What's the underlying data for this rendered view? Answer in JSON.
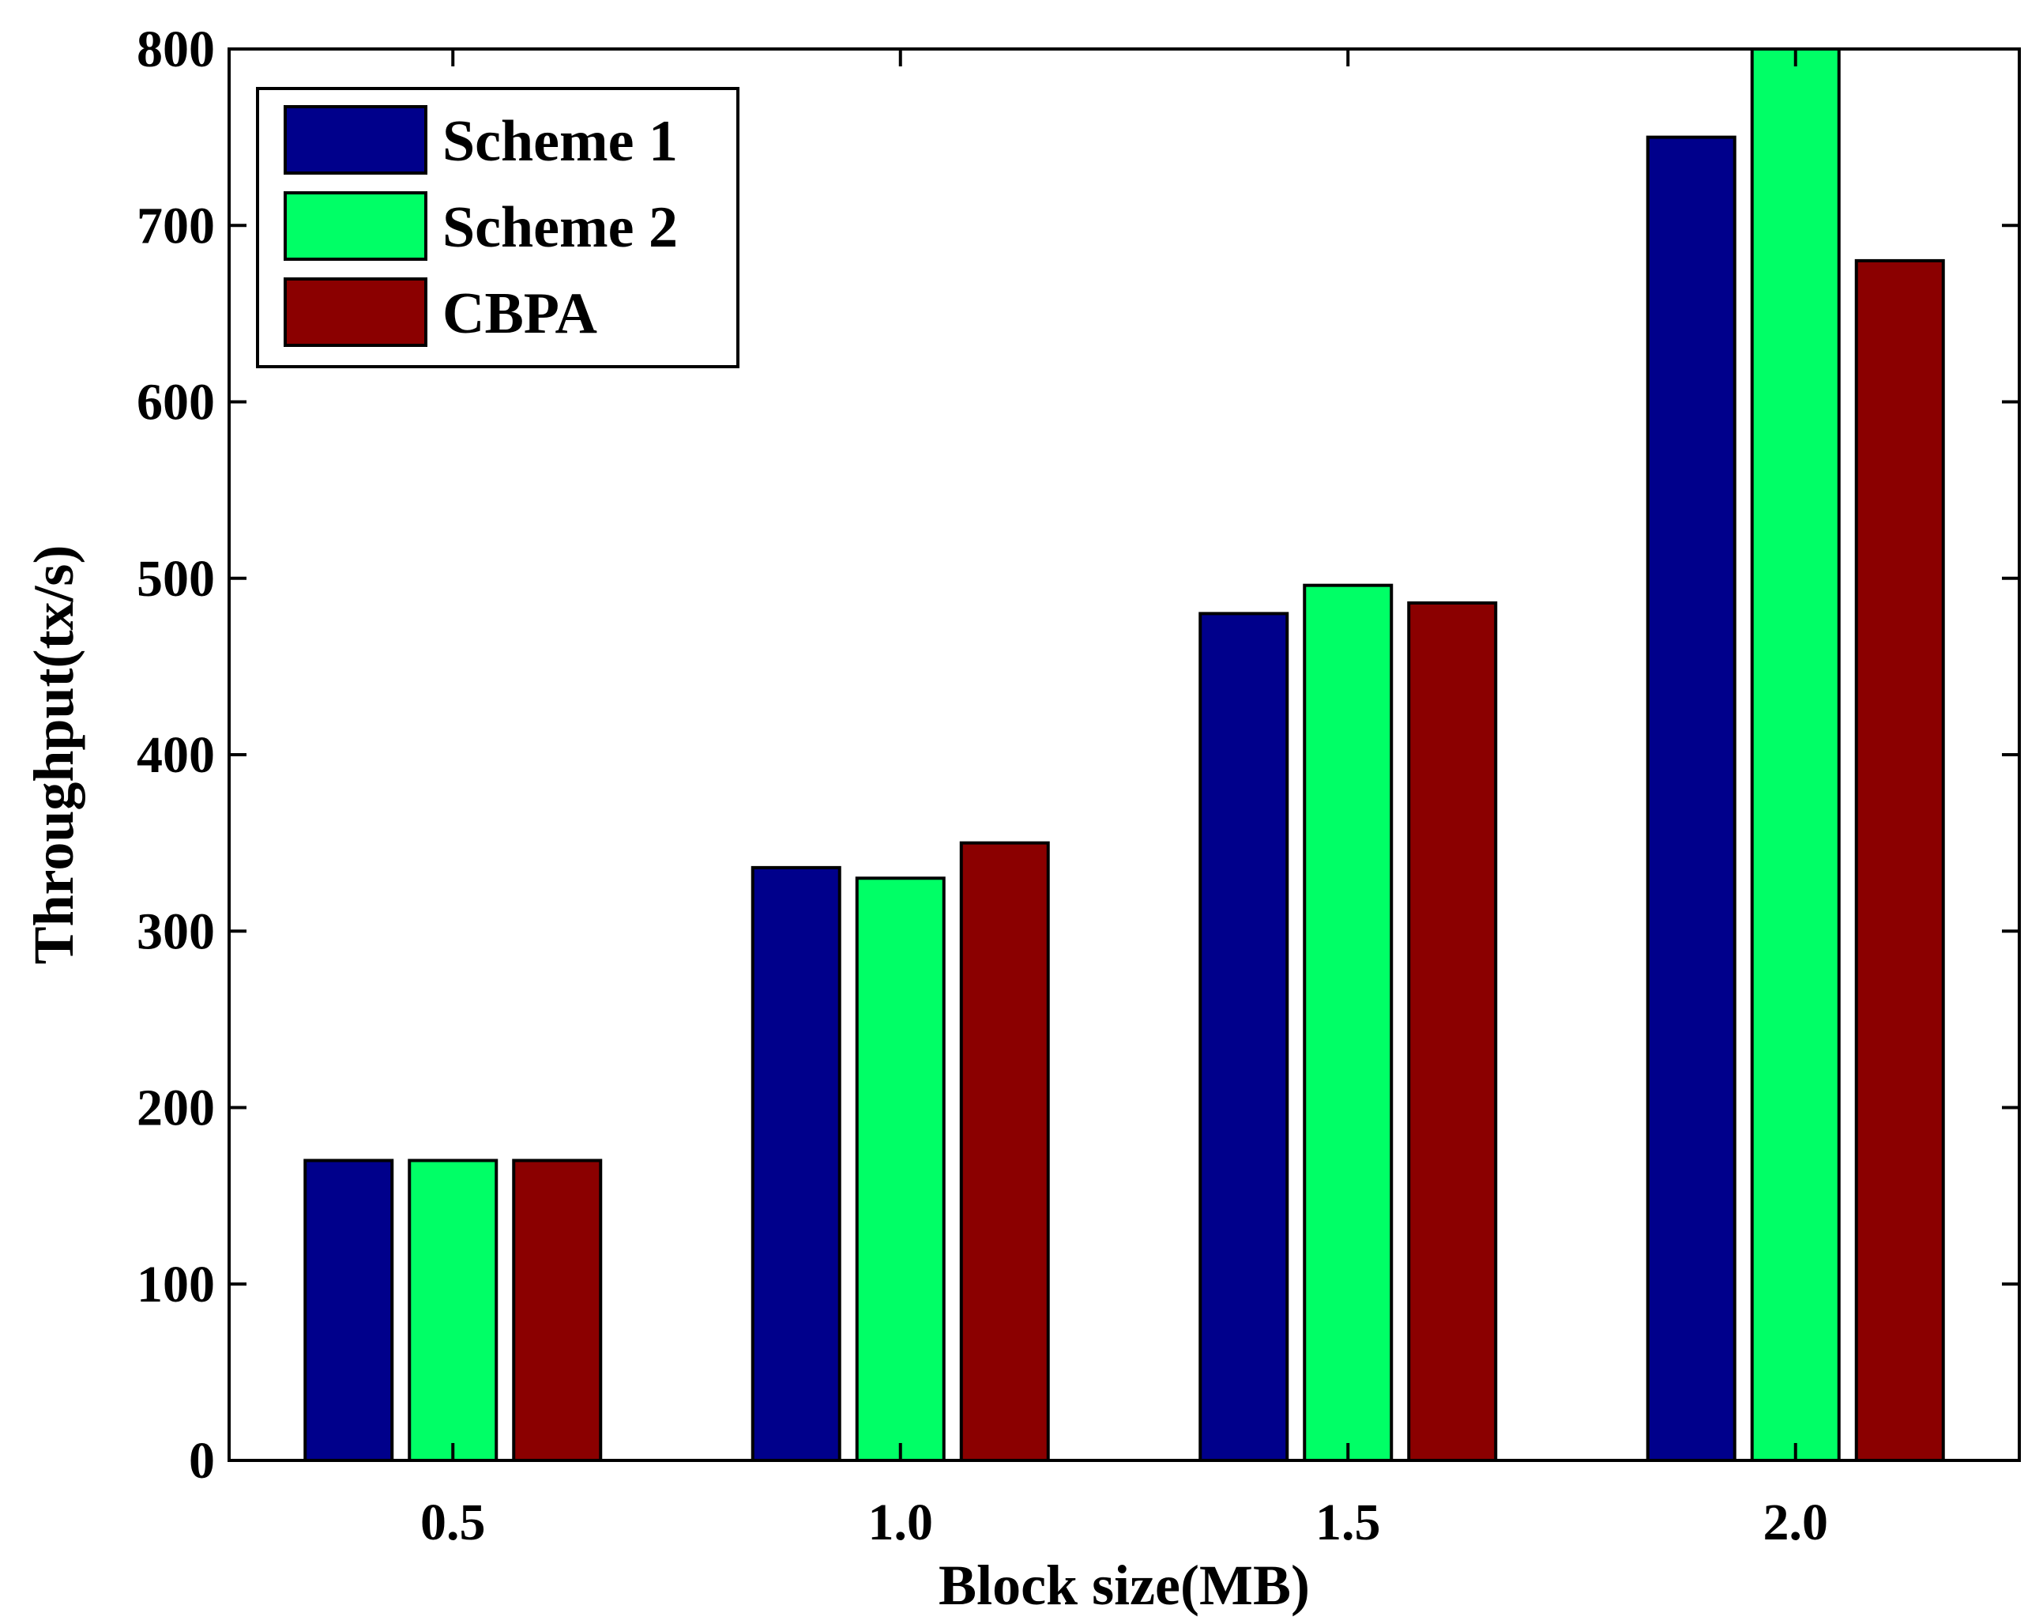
{
  "chart_data": {
    "type": "bar",
    "title": "",
    "xlabel": "Block size(MB)",
    "ylabel": "Throughput(tx/s)",
    "categories": [
      "0.5",
      "1.0",
      "1.5",
      "2.0"
    ],
    "ylim": [
      0,
      800
    ],
    "yticks": [
      "0",
      "100",
      "200",
      "300",
      "400",
      "500",
      "600",
      "700",
      "800"
    ],
    "grid": false,
    "legend_position": "top-left",
    "series": [
      {
        "name": "Scheme 1",
        "color": "#00008B",
        "values": [
          170,
          336,
          480,
          750
        ]
      },
      {
        "name": "Scheme 2",
        "color": "#00FF66",
        "values": [
          170,
          330,
          496,
          800
        ]
      },
      {
        "name": "CBPA",
        "color": "#8B0000",
        "values": [
          170,
          350,
          486,
          680
        ]
      }
    ]
  }
}
